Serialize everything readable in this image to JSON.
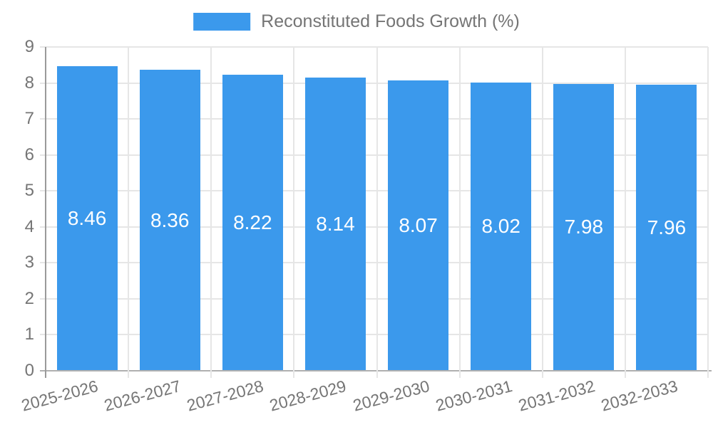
{
  "chart_data": {
    "type": "bar",
    "title": "Reconstituted Foods Growth (%)",
    "legend_entries": [
      "Reconstituted Foods Growth (%)"
    ],
    "legend_position": "top-center",
    "categories": [
      "2025-2026",
      "2026-2027",
      "2027-2028",
      "2028-2029",
      "2029-2030",
      "2030-2031",
      "2031-2032",
      "2032-2033"
    ],
    "values": [
      8.46,
      8.36,
      8.22,
      8.14,
      8.07,
      8.02,
      7.98,
      7.96
    ],
    "value_labels": [
      "8.46",
      "8.36",
      "8.22",
      "8.14",
      "8.07",
      "8.02",
      "7.98",
      "7.96"
    ],
    "xlabel": "",
    "ylabel": "",
    "ylim": [
      0,
      9
    ],
    "yticks": [
      0,
      1,
      2,
      3,
      4,
      5,
      6,
      7,
      8,
      9
    ],
    "grid": true,
    "x_labels_rotated": true,
    "colors": {
      "bar": "#3B99EC",
      "bar_value_text": "#FFFFFF",
      "axis_text": "#757575",
      "gridline": "#E6E6E6",
      "axis_line": "#9A9A9A",
      "baseline": "#B0B0B0",
      "background": "#FFFFFF"
    }
  }
}
